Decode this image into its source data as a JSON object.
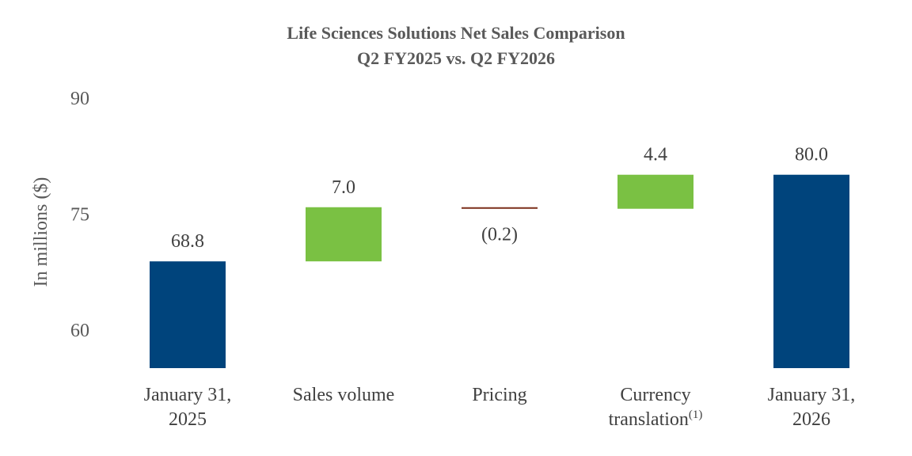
{
  "chart_data": {
    "type": "waterfall",
    "title": "Life Sciences Solutions Net Sales Comparison",
    "subtitle": "Q2 FY2025 vs. Q2 FY2026",
    "ylabel": "In millions ($)",
    "ylim": [
      55,
      90
    ],
    "yticks": [
      "90",
      "75",
      "60"
    ],
    "ytick_values": [
      90,
      75,
      60
    ],
    "grid": false,
    "categories": [
      {
        "lines": [
          "January 31,",
          "2025"
        ],
        "sup": ""
      },
      {
        "lines": [
          "Sales volume"
        ],
        "sup": ""
      },
      {
        "lines": [
          "Pricing"
        ],
        "sup": ""
      },
      {
        "lines": [
          "Currency",
          "translation"
        ],
        "sup": "(1)"
      },
      {
        "lines": [
          "January 31,",
          "2026"
        ],
        "sup": ""
      }
    ],
    "steps": [
      {
        "kind": "total",
        "value": 68.8,
        "label": "68.8"
      },
      {
        "kind": "delta",
        "value": 7.0,
        "label": "7.0"
      },
      {
        "kind": "delta",
        "value": -0.2,
        "label": "(0.2)"
      },
      {
        "kind": "delta",
        "value": 4.4,
        "label": "4.4"
      },
      {
        "kind": "total",
        "value": 80.0,
        "label": "80.0"
      }
    ],
    "colors": {
      "total": "#00447c",
      "increase": "#7ac143",
      "decrease": "#7b2e1a",
      "text": "#404040",
      "axis_text": "#595959"
    }
  }
}
